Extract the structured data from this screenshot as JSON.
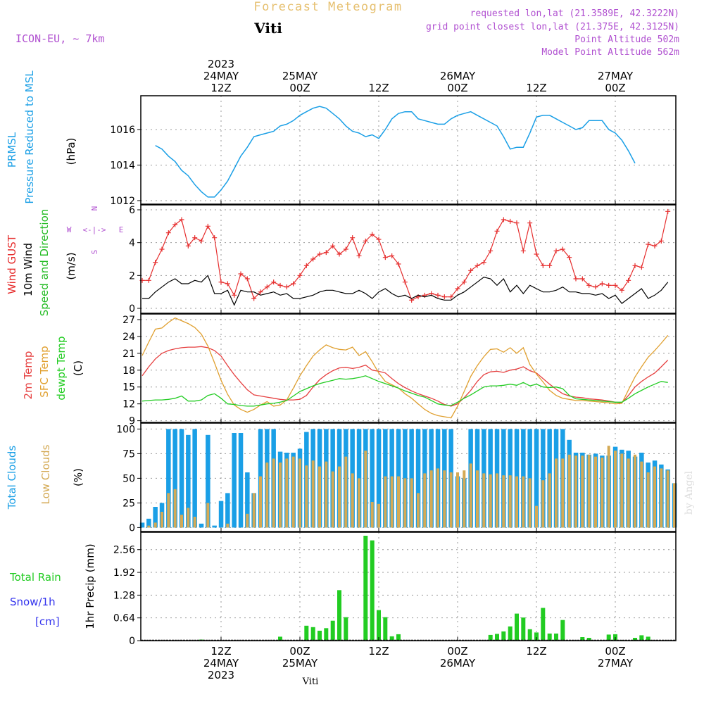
{
  "header": {
    "super_title": "Forecast Meteogram",
    "location": "Viti",
    "model": "ICON-EU, ~ 7km",
    "requested": "requested lon,lat (21.3589E, 42.3222N)",
    "grid_point": "grid point closest lon,lat (21.375E, 42.3125N)",
    "point_altitude": "Point Altitude 502m",
    "model_altitude": "Model Point Altitude 562m",
    "watermark": "by Angel",
    "footer_location": "Viti"
  },
  "colors": {
    "pressure": "#1a9fe6",
    "gust": "#e62e2e",
    "wind": "#000000",
    "direction": "#22bb22",
    "temp2m": "#e64040",
    "sfc": "#e0a030",
    "dewpt": "#22cc22",
    "total_clouds": "#1a9fe6",
    "low_clouds": "#d4aa55",
    "rain": "#22cc22",
    "snow": "#3333ee",
    "meta": "#b050d0",
    "title": "#e6c070",
    "grid": "#999999"
  },
  "time_axis": {
    "start_hour_offset": 0,
    "top_labels": [
      {
        "h": 12,
        "lines": [
          "2023",
          "24MAY",
          "12Z"
        ]
      },
      {
        "h": 24,
        "lines": [
          "25MAY",
          "00Z"
        ]
      },
      {
        "h": 36,
        "lines": [
          "12Z"
        ]
      },
      {
        "h": 48,
        "lines": [
          "26MAY",
          "00Z"
        ]
      },
      {
        "h": 60,
        "lines": [
          "12Z"
        ]
      },
      {
        "h": 72,
        "lines": [
          "27MAY",
          "00Z"
        ]
      }
    ],
    "bottom_labels": [
      {
        "h": 12,
        "lines": [
          "12Z",
          "24MAY",
          "2023"
        ]
      },
      {
        "h": 24,
        "lines": [
          "00Z",
          "25MAY"
        ]
      },
      {
        "h": 36,
        "lines": [
          "12Z"
        ]
      },
      {
        "h": 48,
        "lines": [
          "00Z",
          "26MAY"
        ]
      },
      {
        "h": 60,
        "lines": [
          "12Z"
        ]
      },
      {
        "h": 72,
        "lines": [
          "00Z",
          "27MAY"
        ]
      }
    ]
  },
  "chart_data": [
    {
      "type": "line",
      "panel": "pressure",
      "ylabel_lines": [
        "PRMSL",
        "Pressure Reduced to MSL"
      ],
      "unit": "(hPa)",
      "ylim": [
        1011.8,
        1017.9
      ],
      "yticks": [
        1012,
        1014,
        1016
      ],
      "x_start": 2,
      "x_step": 1,
      "series": [
        {
          "values": [
            1015.1,
            1014.9,
            1014.5,
            1014.2,
            1013.7,
            1013.4,
            1012.9,
            1012.5,
            1012.2,
            1012.2,
            1012.6,
            1013.1,
            1013.8,
            1014.5,
            1015.0,
            1015.6,
            1015.7,
            1015.8,
            1015.9,
            1016.2,
            1016.3,
            1016.5,
            1016.8,
            1017.0,
            1017.2,
            1017.3,
            1017.2,
            1016.9,
            1016.6,
            1016.2,
            1015.9,
            1015.8,
            1015.6,
            1015.7,
            1015.5,
            1016.0,
            1016.6,
            1016.9,
            1017.0,
            1017.0,
            1016.6,
            1016.5,
            1016.4,
            1016.3,
            1016.3,
            1016.6,
            1016.8,
            1016.9,
            1017.0,
            1016.8,
            1016.6,
            1016.4,
            1016.2,
            1015.6,
            1014.9,
            1015.0,
            1015.0,
            1015.8,
            1016.7,
            1016.8,
            1016.8,
            1016.6,
            1016.4,
            1016.2,
            1016.0,
            1016.1,
            1016.5,
            1016.5,
            1016.5,
            1016.0,
            1015.8,
            1015.4,
            1014.8,
            1014.1
          ]
        }
      ]
    },
    {
      "type": "line",
      "panel": "wind",
      "ylabel_lines": [
        "Wind GUST",
        "10m Wind",
        "Speed and Direction"
      ],
      "unit": "(m/s)",
      "compass": {
        "west": "W",
        "east": "E",
        "north": "N",
        "south": "S",
        "arrow": "<-|->"
      },
      "ylim": [
        -0.3,
        6.3
      ],
      "yticks": [
        0,
        2,
        4,
        6
      ],
      "x_start": 0,
      "x_step": 1,
      "series": [
        {
          "name": "Wind GUST",
          "values": [
            1.7,
            1.7,
            2.8,
            3.6,
            4.6,
            5.1,
            5.4,
            3.8,
            4.3,
            4.1,
            5.0,
            4.3,
            1.6,
            1.5,
            0.8,
            2.1,
            1.8,
            0.6,
            1.0,
            1.3,
            1.6,
            1.4,
            1.3,
            1.5,
            2.0,
            2.6,
            3.0,
            3.3,
            3.4,
            3.8,
            3.3,
            3.6,
            4.3,
            3.2,
            4.1,
            4.5,
            4.2,
            3.1,
            3.2,
            2.7,
            1.6,
            0.5,
            0.7,
            0.8,
            0.9,
            0.8,
            0.7,
            0.7,
            1.2,
            1.6,
            2.3,
            2.6,
            2.8,
            3.5,
            4.7,
            5.4,
            5.3,
            5.2,
            3.5,
            5.2,
            3.3,
            2.6,
            2.6,
            3.5,
            3.6,
            3.1,
            1.8,
            1.8,
            1.4,
            1.3,
            1.5,
            1.4,
            1.4,
            1.1,
            1.7,
            2.6,
            2.5,
            3.9,
            3.8,
            4.1,
            5.9
          ]
        },
        {
          "name": "10m Wind",
          "values": [
            0.6,
            0.6,
            1.0,
            1.3,
            1.6,
            1.8,
            1.5,
            1.5,
            1.7,
            1.6,
            2.0,
            0.9,
            0.9,
            1.1,
            0.2,
            1.1,
            1.0,
            1.0,
            0.8,
            0.9,
            1.0,
            0.8,
            0.9,
            0.6,
            0.6,
            0.7,
            0.8,
            1.0,
            1.1,
            1.1,
            1.0,
            0.9,
            0.9,
            1.1,
            0.9,
            0.6,
            1.0,
            1.2,
            0.9,
            0.7,
            0.8,
            0.6,
            0.8,
            0.7,
            0.8,
            0.6,
            0.5,
            0.5,
            0.8,
            1.0,
            1.3,
            1.6,
            1.9,
            1.8,
            1.4,
            1.8,
            1.0,
            1.4,
            0.9,
            1.4,
            1.2,
            1.0,
            1.0,
            1.1,
            1.3,
            1.0,
            1.0,
            0.9,
            0.9,
            0.8,
            0.9,
            0.6,
            0.8,
            0.3,
            0.6,
            0.9,
            1.2,
            0.6,
            0.8,
            1.1,
            1.6
          ]
        }
      ]
    },
    {
      "type": "line",
      "panel": "temperature",
      "ylabel_lines": [
        "2m Temp",
        "SFC Temp",
        "dewpt Temp"
      ],
      "unit": "(C)",
      "ylim": [
        8.7,
        28.0
      ],
      "yticks": [
        9,
        12,
        15,
        18,
        21,
        24,
        27
      ],
      "x_start": 0,
      "x_step": 1,
      "series": [
        {
          "name": "2m Temp",
          "values": [
            17.0,
            18.6,
            20.0,
            21.0,
            21.5,
            21.8,
            22.0,
            22.1,
            22.1,
            22.2,
            22.0,
            21.5,
            20.5,
            18.8,
            17.2,
            15.8,
            14.5,
            13.6,
            13.4,
            13.2,
            13.0,
            12.8,
            12.7,
            12.7,
            12.8,
            13.5,
            15.0,
            16.3,
            17.2,
            17.9,
            18.4,
            18.5,
            18.3,
            18.5,
            18.9,
            18.0,
            17.8,
            17.5,
            16.5,
            15.6,
            14.9,
            14.3,
            13.8,
            13.4,
            13.0,
            12.5,
            11.9,
            11.6,
            12.0,
            13.1,
            14.4,
            16.0,
            17.2,
            17.7,
            17.8,
            17.6,
            18.0,
            18.2,
            18.6,
            17.9,
            17.5,
            16.5,
            15.5,
            14.6,
            13.8,
            13.4,
            13.2,
            13.1,
            12.9,
            12.8,
            12.7,
            12.5,
            12.3,
            12.2,
            13.5,
            15.0,
            16.0,
            16.8,
            17.5,
            18.6,
            19.8
          ]
        },
        {
          "name": "SFC Temp",
          "values": [
            20.6,
            23.0,
            25.3,
            25.5,
            26.5,
            27.3,
            26.8,
            26.3,
            25.6,
            24.4,
            22.3,
            19.3,
            16.2,
            13.7,
            11.8,
            11.0,
            10.5,
            11.0,
            11.8,
            12.4,
            11.6,
            11.8,
            12.7,
            14.8,
            17.0,
            18.8,
            20.5,
            21.6,
            22.5,
            22.0,
            21.7,
            21.6,
            22.1,
            20.6,
            21.3,
            19.5,
            17.5,
            16.0,
            15.4,
            14.8,
            13.8,
            13.0,
            12.0,
            11.0,
            10.3,
            9.9,
            9.7,
            9.5,
            11.6,
            14.2,
            16.9,
            18.8,
            20.4,
            21.7,
            21.8,
            21.2,
            22.0,
            21.0,
            22.0,
            19.0,
            17.3,
            15.9,
            14.4,
            13.5,
            13.0,
            12.8,
            12.6,
            12.6,
            12.5,
            12.4,
            12.3,
            12.2,
            12.0,
            12.1,
            14.5,
            16.8,
            18.6,
            20.3,
            21.5,
            22.8,
            24.2
          ]
        },
        {
          "name": "dewpt Temp",
          "values": [
            12.5,
            12.6,
            12.7,
            12.7,
            12.8,
            13.0,
            13.4,
            12.5,
            12.5,
            12.7,
            13.5,
            13.8,
            13.0,
            12.0,
            11.9,
            11.7,
            11.6,
            11.6,
            11.8,
            12.0,
            12.1,
            12.3,
            12.6,
            13.4,
            14.2,
            14.7,
            15.2,
            15.6,
            15.9,
            16.2,
            16.5,
            16.4,
            16.5,
            16.7,
            17.0,
            16.5,
            16.0,
            15.6,
            15.2,
            14.8,
            14.3,
            13.9,
            13.5,
            13.2,
            12.6,
            12.0,
            11.8,
            11.7,
            12.3,
            13.0,
            13.6,
            14.3,
            15.0,
            15.2,
            15.2,
            15.3,
            15.5,
            15.3,
            15.8,
            15.2,
            15.5,
            15.0,
            14.9,
            15.0,
            14.7,
            13.5,
            12.9,
            12.8,
            12.7,
            12.6,
            12.5,
            12.4,
            12.3,
            12.3,
            13.0,
            13.8,
            14.4,
            15.0,
            15.5,
            16.0,
            15.8
          ]
        }
      ]
    },
    {
      "type": "bar",
      "panel": "clouds",
      "ylabel_lines": [
        "Total Clouds",
        "Low Clouds"
      ],
      "unit": "(%)",
      "ylim": [
        -4,
        106
      ],
      "yticks": [
        0,
        25,
        50,
        75,
        100
      ],
      "x_start": 0,
      "x_step": 1,
      "series": [
        {
          "name": "Total Clouds",
          "values": [
            5,
            9,
            21,
            25,
            100,
            100,
            100,
            94,
            100,
            4,
            94,
            2,
            27,
            35,
            96,
            96,
            56,
            35,
            100,
            100,
            100,
            77,
            76,
            76,
            80,
            97,
            100,
            100,
            100,
            100,
            100,
            100,
            100,
            100,
            100,
            100,
            100,
            100,
            100,
            100,
            100,
            100,
            100,
            100,
            100,
            100,
            100,
            100,
            52,
            50,
            100,
            100,
            100,
            100,
            100,
            100,
            100,
            100,
            100,
            100,
            100,
            100,
            100,
            100,
            100,
            89,
            76,
            76,
            74,
            75,
            73,
            73,
            82,
            79,
            78,
            72,
            76,
            66,
            68,
            64,
            59,
            45
          ]
        },
        {
          "name": "Low Clouds",
          "values": [
            0,
            2,
            5,
            16,
            35,
            39,
            13,
            20,
            11,
            0,
            25,
            0,
            0,
            4,
            0,
            0,
            14,
            35,
            52,
            66,
            70,
            66,
            70,
            72,
            70,
            63,
            68,
            62,
            67,
            57,
            62,
            72,
            55,
            50,
            78,
            26,
            24,
            52,
            52,
            52,
            50,
            50,
            35,
            55,
            58,
            60,
            58,
            56,
            56,
            58,
            65,
            58,
            55,
            54,
            55,
            53,
            53,
            52,
            52,
            50,
            22,
            48,
            55,
            70,
            70,
            74,
            73,
            73,
            74,
            72,
            71,
            83,
            78,
            75,
            70,
            74,
            67,
            56,
            62,
            60,
            58,
            45
          ]
        }
      ]
    },
    {
      "type": "bar",
      "panel": "precip",
      "left_labels": {
        "rain": "Total Rain",
        "snow": "Snow/1h",
        "unit": "[cm]"
      },
      "ylabel": "1hr Precip (mm)",
      "ylim": [
        0,
        3.05
      ],
      "yticks": [
        0,
        0.64,
        1.28,
        1.92,
        2.56
      ],
      "ytick_labels": [
        "0",
        "0.64",
        "1.28",
        "1.92",
        "2.56"
      ],
      "x_start": 0,
      "x_step": 1,
      "series": [
        {
          "name": "Total Rain",
          "values": [
            0,
            0,
            0,
            0,
            0,
            0,
            0,
            0,
            0,
            0.03,
            0,
            0,
            0,
            0,
            0,
            0,
            0,
            0,
            0,
            0,
            0,
            0.11,
            0,
            0,
            0,
            0.42,
            0.38,
            0.28,
            0.35,
            0.56,
            1.42,
            0.66,
            0,
            0,
            2.95,
            2.82,
            0.86,
            0.66,
            0.12,
            0.18,
            0,
            0,
            0,
            0,
            0,
            0,
            0,
            0,
            0,
            0,
            0,
            0,
            0,
            0.16,
            0.19,
            0.26,
            0.4,
            0.76,
            0.65,
            0.32,
            0.23,
            0.92,
            0.2,
            0.2,
            0.58,
            0,
            0,
            0.1,
            0.08,
            0,
            0,
            0.17,
            0.18,
            0.02,
            0,
            0.08,
            0.15,
            0.11,
            0,
            0,
            0
          ]
        }
      ]
    }
  ]
}
